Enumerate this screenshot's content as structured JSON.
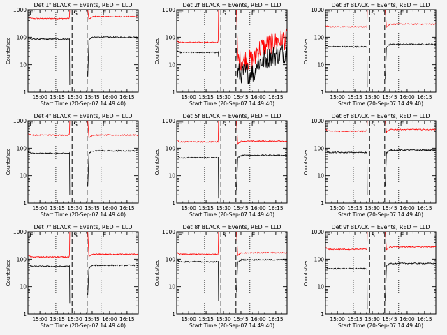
{
  "chart_data": {
    "type": "line",
    "figure_layout": "3x3 grid of time-series panels",
    "common": {
      "xlabel": "Start Time (20-Sep-07 14:49:40)",
      "ylabel": "Counts/sec",
      "yscale": "log",
      "ylim": [
        1,
        1000
      ],
      "yticks": [
        "1",
        "10",
        "100",
        "1000"
      ],
      "xlim_minutes_after_14_49_40": [
        0,
        95
      ],
      "xticks": [
        {
          "label": "15:00",
          "minutes": 10.3
        },
        {
          "label": "15:15",
          "minutes": 25.3
        },
        {
          "label": "15:30",
          "minutes": 40.3
        },
        {
          "label": "15:45",
          "minutes": 55.3
        },
        {
          "label": "16:00",
          "minutes": 70.3
        },
        {
          "label": "16:15",
          "minutes": 85.3
        }
      ],
      "markers": [
        {
          "label": "E",
          "minutes": 0,
          "style": "solid"
        },
        {
          "label": "S",
          "minutes": 38,
          "style": "dashed"
        },
        {
          "label": "",
          "minutes": 51,
          "style": "dashed"
        },
        {
          "label": "E",
          "minutes": 63,
          "style": "dotted"
        }
      ],
      "dotted_lines_minutes": [
        24,
        63
      ],
      "legend": "BLACK = Events, RED = LLD",
      "series_names": [
        "Events",
        "LLD"
      ],
      "series_colors": {
        "Events": "#000000",
        "LLD": "#ff0000"
      }
    },
    "panels": [
      {
        "title": "Det 1f BLACK = Events, RED = LLD",
        "events_before": 85,
        "events_after": 100,
        "lld_before": 480,
        "lld_after": 560,
        "dip": 1.8
      },
      {
        "title": "Det 2f BLACK = Events, RED = LLD",
        "events_before": 28,
        "events_after": 20,
        "lld_before": 65,
        "lld_after": 60,
        "dip": 20,
        "noisy_after": true
      },
      {
        "title": "Det 3f BLACK = Events, RED = LLD",
        "events_before": 45,
        "events_after": 55,
        "lld_before": 240,
        "lld_after": 300,
        "dip": 1.5
      },
      {
        "title": "Det 4f BLACK = Events, RED = LLD",
        "events_before": 65,
        "events_after": 80,
        "lld_before": 300,
        "lld_after": 300,
        "dip": 2
      },
      {
        "title": "Det 5f BLACK = Events, RED = LLD",
        "events_before": 45,
        "events_after": 55,
        "lld_before": 170,
        "lld_after": 180,
        "dip": 1.5
      },
      {
        "title": "Det 6f BLACK = Events, RED = LLD",
        "events_before": 70,
        "events_after": 85,
        "lld_before": 420,
        "lld_after": 480,
        "dip": 2
      },
      {
        "title": "Det 7f BLACK = Events, RED = LLD",
        "events_before": 55,
        "events_after": 60,
        "lld_before": 120,
        "lld_after": 150,
        "dip": 2.5
      },
      {
        "title": "Det 8f BLACK = Events, RED = LLD",
        "events_before": 80,
        "events_after": 95,
        "lld_before": 150,
        "lld_after": 170,
        "dip": 3
      },
      {
        "title": "Det 9f BLACK = Events, RED = LLD",
        "events_before": 45,
        "events_after": 70,
        "lld_before": 230,
        "lld_after": 280,
        "dip": 1.5
      }
    ]
  }
}
